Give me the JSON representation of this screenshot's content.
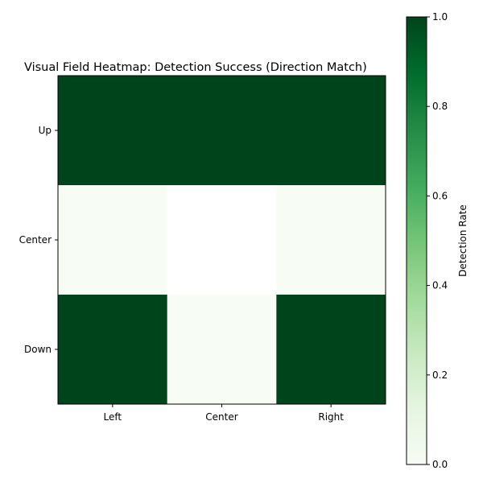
{
  "chart_data": {
    "type": "heatmap",
    "title": "Visual Field Heatmap: Detection Success (Direction Match)",
    "x_categories": [
      "Left",
      "Center",
      "Right"
    ],
    "y_categories": [
      "Up",
      "Center",
      "Down"
    ],
    "values": [
      [
        1.0,
        1.0,
        1.0
      ],
      [
        0.0,
        null,
        0.0
      ],
      [
        1.0,
        0.0,
        1.0
      ]
    ],
    "colormap": "Greens",
    "missing_color": "#ffffff",
    "colorbar": {
      "label": "Detection Rate",
      "range": [
        0.0,
        1.0
      ],
      "ticks": [
        "0.0",
        "0.2",
        "0.4",
        "0.6",
        "0.8",
        "1.0"
      ]
    },
    "grid": false
  }
}
